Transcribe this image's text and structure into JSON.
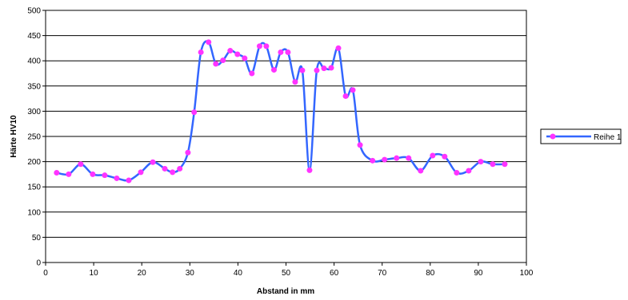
{
  "chart_data": {
    "type": "line",
    "title": "",
    "xlabel": "Abstand in mm",
    "ylabel": "Härte HV10",
    "xlim": [
      0,
      100
    ],
    "ylim": [
      0,
      500
    ],
    "xticks": [
      0,
      10,
      20,
      30,
      40,
      50,
      60,
      70,
      80,
      90,
      100
    ],
    "yticks": [
      0,
      50,
      100,
      150,
      200,
      250,
      300,
      350,
      400,
      450,
      500
    ],
    "grid": "horizontal",
    "legend_position": "right",
    "series": [
      {
        "name": "Reihe 1",
        "line_color": "#3366ff",
        "marker_color": "#ff33ff",
        "x": [
          2.3,
          4.8,
          7.3,
          9.8,
          12.3,
          14.8,
          17.3,
          19.8,
          22.3,
          24.8,
          26.4,
          27.9,
          29.6,
          30.9,
          32.3,
          33.9,
          35.4,
          36.9,
          38.4,
          39.9,
          41.4,
          42.9,
          44.5,
          45.9,
          47.5,
          48.9,
          50.4,
          51.9,
          53.4,
          54.9,
          56.4,
          57.9,
          59.4,
          60.9,
          62.4,
          63.9,
          65.4,
          68.0,
          70.5,
          73.0,
          75.5,
          78.0,
          80.5,
          83.0,
          85.5,
          88.0,
          90.5,
          93.0,
          95.5
        ],
        "y": [
          178,
          175,
          195,
          175,
          173,
          167,
          163,
          179,
          199,
          186,
          179,
          186,
          218,
          298,
          417,
          437,
          394,
          401,
          420,
          413,
          405,
          375,
          429,
          429,
          382,
          417,
          417,
          358,
          381,
          183,
          381,
          385,
          386,
          425,
          330,
          342,
          233,
          202,
          204,
          207,
          207,
          182,
          212,
          210,
          178,
          182,
          200,
          195,
          195
        ]
      }
    ]
  }
}
